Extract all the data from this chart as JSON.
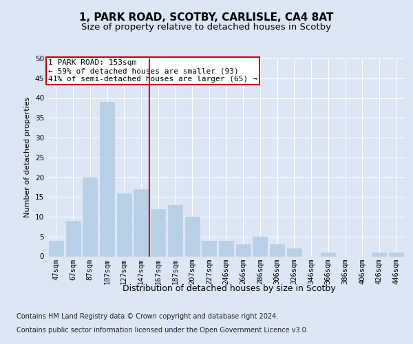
{
  "title1": "1, PARK ROAD, SCOTBY, CARLISLE, CA4 8AT",
  "title2": "Size of property relative to detached houses in Scotby",
  "xlabel": "Distribution of detached houses by size in Scotby",
  "ylabel": "Number of detached properties",
  "categories": [
    "47sqm",
    "67sqm",
    "87sqm",
    "107sqm",
    "127sqm",
    "147sqm",
    "167sqm",
    "187sqm",
    "207sqm",
    "227sqm",
    "246sqm",
    "266sqm",
    "286sqm",
    "306sqm",
    "326sqm",
    "346sqm",
    "366sqm",
    "386sqm",
    "406sqm",
    "426sqm",
    "446sqm"
  ],
  "values": [
    4,
    9,
    20,
    39,
    16,
    17,
    12,
    13,
    10,
    4,
    4,
    3,
    5,
    3,
    2,
    0,
    1,
    0,
    0,
    1,
    1
  ],
  "bar_color": "#b8cfe8",
  "bar_edge_color": "#b8cfe8",
  "vline_x": 5.5,
  "vline_color": "#cc0000",
  "annotation_lines": [
    "1 PARK ROAD: 153sqm",
    "← 59% of detached houses are smaller (93)",
    "41% of semi-detached houses are larger (65) →"
  ],
  "annotation_box_color": "#ffffff",
  "annotation_box_edge": "#cc0000",
  "footer1": "Contains HM Land Registry data © Crown copyright and database right 2024.",
  "footer2": "Contains public sector information licensed under the Open Government Licence v3.0.",
  "bg_color": "#dce6f5",
  "plot_bg_color": "#dce6f5",
  "ylim": [
    0,
    50
  ],
  "yticks": [
    0,
    5,
    10,
    15,
    20,
    25,
    30,
    35,
    40,
    45,
    50
  ],
  "title1_fontsize": 11,
  "title2_fontsize": 9.5,
  "xlabel_fontsize": 9,
  "ylabel_fontsize": 8,
  "tick_fontsize": 7.5,
  "footer_fontsize": 7,
  "ann_fontsize": 8
}
